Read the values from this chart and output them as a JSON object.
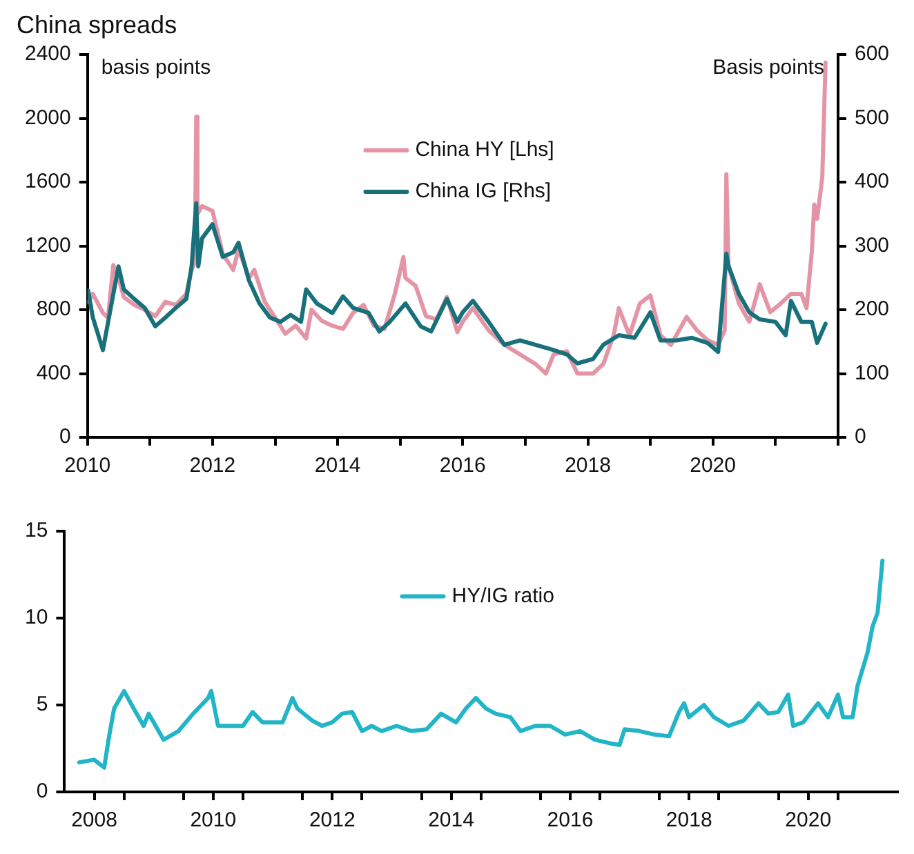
{
  "chart_data": [
    {
      "type": "line",
      "title": "China spreads",
      "ylabel": "basis points",
      "y2label": "Basis points",
      "legend": "top",
      "grid": false,
      "marker": "none",
      "line_style": "solid",
      "xlim": [
        "2010-01-01",
        "2022-01-01"
      ],
      "xticks": [
        {
          "value": "2010-01-01",
          "label": "2010"
        },
        {
          "value": "2011-01-01",
          "label": null
        },
        {
          "value": "2012-01-01",
          "label": "2012"
        },
        {
          "value": "2013-01-01",
          "label": null
        },
        {
          "value": "2014-01-01",
          "label": "2014"
        },
        {
          "value": "2015-01-01",
          "label": null
        },
        {
          "value": "2016-01-01",
          "label": "2016"
        },
        {
          "value": "2017-01-01",
          "label": null
        },
        {
          "value": "2018-01-01",
          "label": "2018"
        },
        {
          "value": "2019-01-01",
          "label": null
        },
        {
          "value": "2020-01-01",
          "label": "2020"
        },
        {
          "value": "2021-01-01",
          "label": null
        },
        {
          "value": "2022-01-01",
          "label": null
        }
      ],
      "ylim": [
        0,
        2400
      ],
      "yticks": [
        0,
        400,
        800,
        1200,
        1600,
        2000,
        2400
      ],
      "y2lim": [
        0,
        600
      ],
      "y2ticks": [
        0,
        100,
        200,
        300,
        400,
        500,
        600
      ],
      "series": [
        {
          "name": "China HY [Lhs]",
          "color": "#e495a5",
          "x": [
            "2010-01-05",
            "2010-02",
            "2010-04",
            "2010-05",
            "2010-06",
            "2010-07",
            "2010-08",
            "2010-10",
            "2010-12",
            "2011-02",
            "2011-04",
            "2011-06",
            "2011-08",
            "2011-09-01",
            "2011-09-20",
            "2011-09-28",
            "2011-10-05",
            "2011-11",
            "2012-01",
            "2012-03",
            "2012-05",
            "2012-06",
            "2012-08",
            "2012-09",
            "2012-11",
            "2013-01",
            "2013-03",
            "2013-05",
            "2013-07",
            "2013-08",
            "2013-10",
            "2013-12",
            "2014-02",
            "2014-04",
            "2014-06",
            "2014-08",
            "2014-10",
            "2014-12",
            "2015-01-20",
            "2015-02",
            "2015-04",
            "2015-06",
            "2015-08",
            "2015-10",
            "2015-12",
            "2016-01",
            "2016-03",
            "2016-06",
            "2016-09",
            "2016-12",
            "2017-03",
            "2017-05",
            "2017-06-15",
            "2017-09",
            "2017-11",
            "2018-02",
            "2018-04",
            "2018-06",
            "2018-07",
            "2018-09",
            "2018-11",
            "2019-01",
            "2019-03",
            "2019-05",
            "2019-08",
            "2019-10",
            "2019-12",
            "2020-02",
            "2020-03-10",
            "2020-03-20",
            "2020-04",
            "2020-06",
            "2020-08",
            "2020-10",
            "2020-12",
            "2021-02",
            "2021-04",
            "2021-06",
            "2021-07",
            "2021-08-01",
            "2021-08-15",
            "2021-09",
            "2021-10-01",
            "2021-10-20"
          ],
          "values": [
            850,
            900,
            780,
            750,
            1080,
            1000,
            880,
            830,
            800,
            760,
            850,
            830,
            900,
            1050,
            1100,
            2010,
            1400,
            1450,
            1420,
            1150,
            1050,
            1180,
            1000,
            1050,
            850,
            750,
            650,
            700,
            620,
            800,
            730,
            700,
            680,
            780,
            830,
            700,
            680,
            900,
            1130,
            1000,
            950,
            760,
            740,
            880,
            660,
            725,
            810,
            670,
            580,
            520,
            460,
            400,
            520,
            540,
            400,
            400,
            460,
            640,
            810,
            640,
            840,
            890,
            640,
            580,
            755,
            670,
            610,
            580,
            670,
            1650,
            1080,
            840,
            725,
            960,
            785,
            840,
            900,
            900,
            810,
            1165,
            1460,
            1370,
            1630,
            2350
          ]
        },
        {
          "name": "China IG [Rhs]",
          "color": "#17707a",
          "axis": "y2",
          "x": [
            "2010-01-05",
            "2010-02",
            "2010-04",
            "2010-05",
            "2010-06",
            "2010-07",
            "2010-08",
            "2010-10",
            "2010-12",
            "2011-02",
            "2011-04",
            "2011-06",
            "2011-08",
            "2011-09-01",
            "2011-09-28",
            "2011-10-10",
            "2011-11",
            "2012-01",
            "2012-03",
            "2012-05",
            "2012-06",
            "2012-08",
            "2012-10",
            "2012-12",
            "2013-02",
            "2013-04",
            "2013-06",
            "2013-07",
            "2013-09",
            "2013-12",
            "2014-02",
            "2014-04",
            "2014-07",
            "2014-09",
            "2014-11",
            "2015-02",
            "2015-05",
            "2015-07",
            "2015-10",
            "2015-12",
            "2016-01",
            "2016-03",
            "2016-06",
            "2016-09",
            "2016-12",
            "2017-03",
            "2017-06",
            "2017-09",
            "2017-11",
            "2018-02",
            "2018-04",
            "2018-07",
            "2018-10",
            "2019-01",
            "2019-03",
            "2019-06",
            "2019-09",
            "2019-12",
            "2020-02",
            "2020-03-20",
            "2020-04",
            "2020-06",
            "2020-08",
            "2020-10",
            "2021-01",
            "2021-03",
            "2021-04",
            "2021-06",
            "2021-08",
            "2021-09",
            "2021-10-20"
          ],
          "values": [
            230,
            188,
            137,
            180,
            225,
            268,
            232,
            217,
            203,
            174,
            188,
            203,
            217,
            268,
            367,
            268,
            312,
            334,
            283,
            290,
            305,
            246,
            210,
            188,
            181,
            192,
            181,
            232,
            210,
            195,
            221,
            203,
            195,
            166,
            181,
            210,
            174,
            166,
            217,
            181,
            196,
            214,
            181,
            145,
            152,
            145,
            138,
            130,
            116,
            123,
            145,
            160,
            156,
            196,
            152,
            152,
            156,
            148,
            134,
            288,
            269,
            225,
            196,
            185,
            181,
            160,
            214,
            181,
            181,
            148,
            178
          ]
        }
      ]
    },
    {
      "type": "line",
      "legend": "top",
      "grid": false,
      "marker": "none",
      "line_style": "solid",
      "xlim": [
        "2008-01-01",
        "2022-01-01"
      ],
      "xticks": [
        {
          "value": "2008-07-02",
          "label": "2008"
        },
        {
          "value": "2009-01-01",
          "label": null
        },
        {
          "value": "2010-01-01",
          "label": null
        },
        {
          "value": "2010-07-02",
          "label": "2010"
        },
        {
          "value": "2011-01-01",
          "label": null
        },
        {
          "value": "2012-01-01",
          "label": null
        },
        {
          "value": "2012-07-02",
          "label": "2012"
        },
        {
          "value": "2013-01-01",
          "label": null
        },
        {
          "value": "2014-01-01",
          "label": null
        },
        {
          "value": "2014-07-02",
          "label": "2014"
        },
        {
          "value": "2015-01-01",
          "label": null
        },
        {
          "value": "2016-01-01",
          "label": null
        },
        {
          "value": "2016-07-02",
          "label": "2016"
        },
        {
          "value": "2017-01-01",
          "label": null
        },
        {
          "value": "2018-01-01",
          "label": null
        },
        {
          "value": "2018-07-02",
          "label": "2018"
        },
        {
          "value": "2019-01-01",
          "label": null
        },
        {
          "value": "2020-01-01",
          "label": null
        },
        {
          "value": "2020-07-02",
          "label": "2020"
        },
        {
          "value": "2021-01-01",
          "label": null
        }
      ],
      "ylim": [
        0,
        15
      ],
      "yticks": [
        0,
        5,
        10,
        15
      ],
      "series": [
        {
          "name": "HY/IG ratio",
          "color": "#22b5c8",
          "x": [
            "2008-04",
            "2008-07",
            "2008-09",
            "2008-10",
            "2008-11",
            "2009-01",
            "2009-03",
            "2009-05",
            "2009-06",
            "2009-09",
            "2009-12",
            "2010-03",
            "2010-06",
            "2010-06-20",
            "2010-08",
            "2010-10",
            "2011-01",
            "2011-03",
            "2011-05",
            "2011-09",
            "2011-11",
            "2011-12",
            "2012-03",
            "2012-05",
            "2012-07",
            "2012-09",
            "2012-11",
            "2013-01",
            "2013-03",
            "2013-05",
            "2013-08",
            "2013-11",
            "2014-02",
            "2014-05",
            "2014-08",
            "2014-10",
            "2014-12",
            "2015-02",
            "2015-04",
            "2015-07",
            "2015-09",
            "2015-12",
            "2016-03",
            "2016-06",
            "2016-09",
            "2016-12",
            "2017-03",
            "2017-05",
            "2017-06",
            "2017-09",
            "2017-12",
            "2018-03",
            "2018-05",
            "2018-06",
            "2018-07",
            "2018-10",
            "2018-12",
            "2019-03",
            "2019-06",
            "2019-09",
            "2019-11",
            "2020-01",
            "2020-03",
            "2020-04",
            "2020-06",
            "2020-09",
            "2020-11",
            "2021-01",
            "2021-02",
            "2021-04",
            "2021-05",
            "2021-07",
            "2021-08",
            "2021-09",
            "2021-10"
          ],
          "values": [
            1.7,
            1.85,
            1.4,
            3.2,
            4.8,
            5.8,
            4.8,
            3.8,
            4.5,
            3.0,
            3.5,
            4.5,
            5.4,
            5.8,
            3.8,
            3.8,
            3.8,
            4.6,
            4.0,
            4.0,
            5.4,
            4.8,
            4.1,
            3.8,
            4.0,
            4.5,
            4.6,
            3.5,
            3.8,
            3.5,
            3.8,
            3.5,
            3.6,
            4.5,
            4.0,
            4.8,
            5.4,
            4.8,
            4.5,
            4.3,
            3.5,
            3.8,
            3.8,
            3.3,
            3.5,
            3.0,
            2.8,
            2.7,
            3.6,
            3.5,
            3.3,
            3.2,
            4.6,
            5.1,
            4.3,
            5.0,
            4.3,
            3.8,
            4.1,
            5.1,
            4.5,
            4.6,
            5.6,
            3.8,
            4.0,
            5.1,
            4.3,
            5.6,
            4.3,
            4.3,
            6.1,
            8.0,
            9.5,
            10.3,
            13.3
          ]
        }
      ]
    }
  ]
}
